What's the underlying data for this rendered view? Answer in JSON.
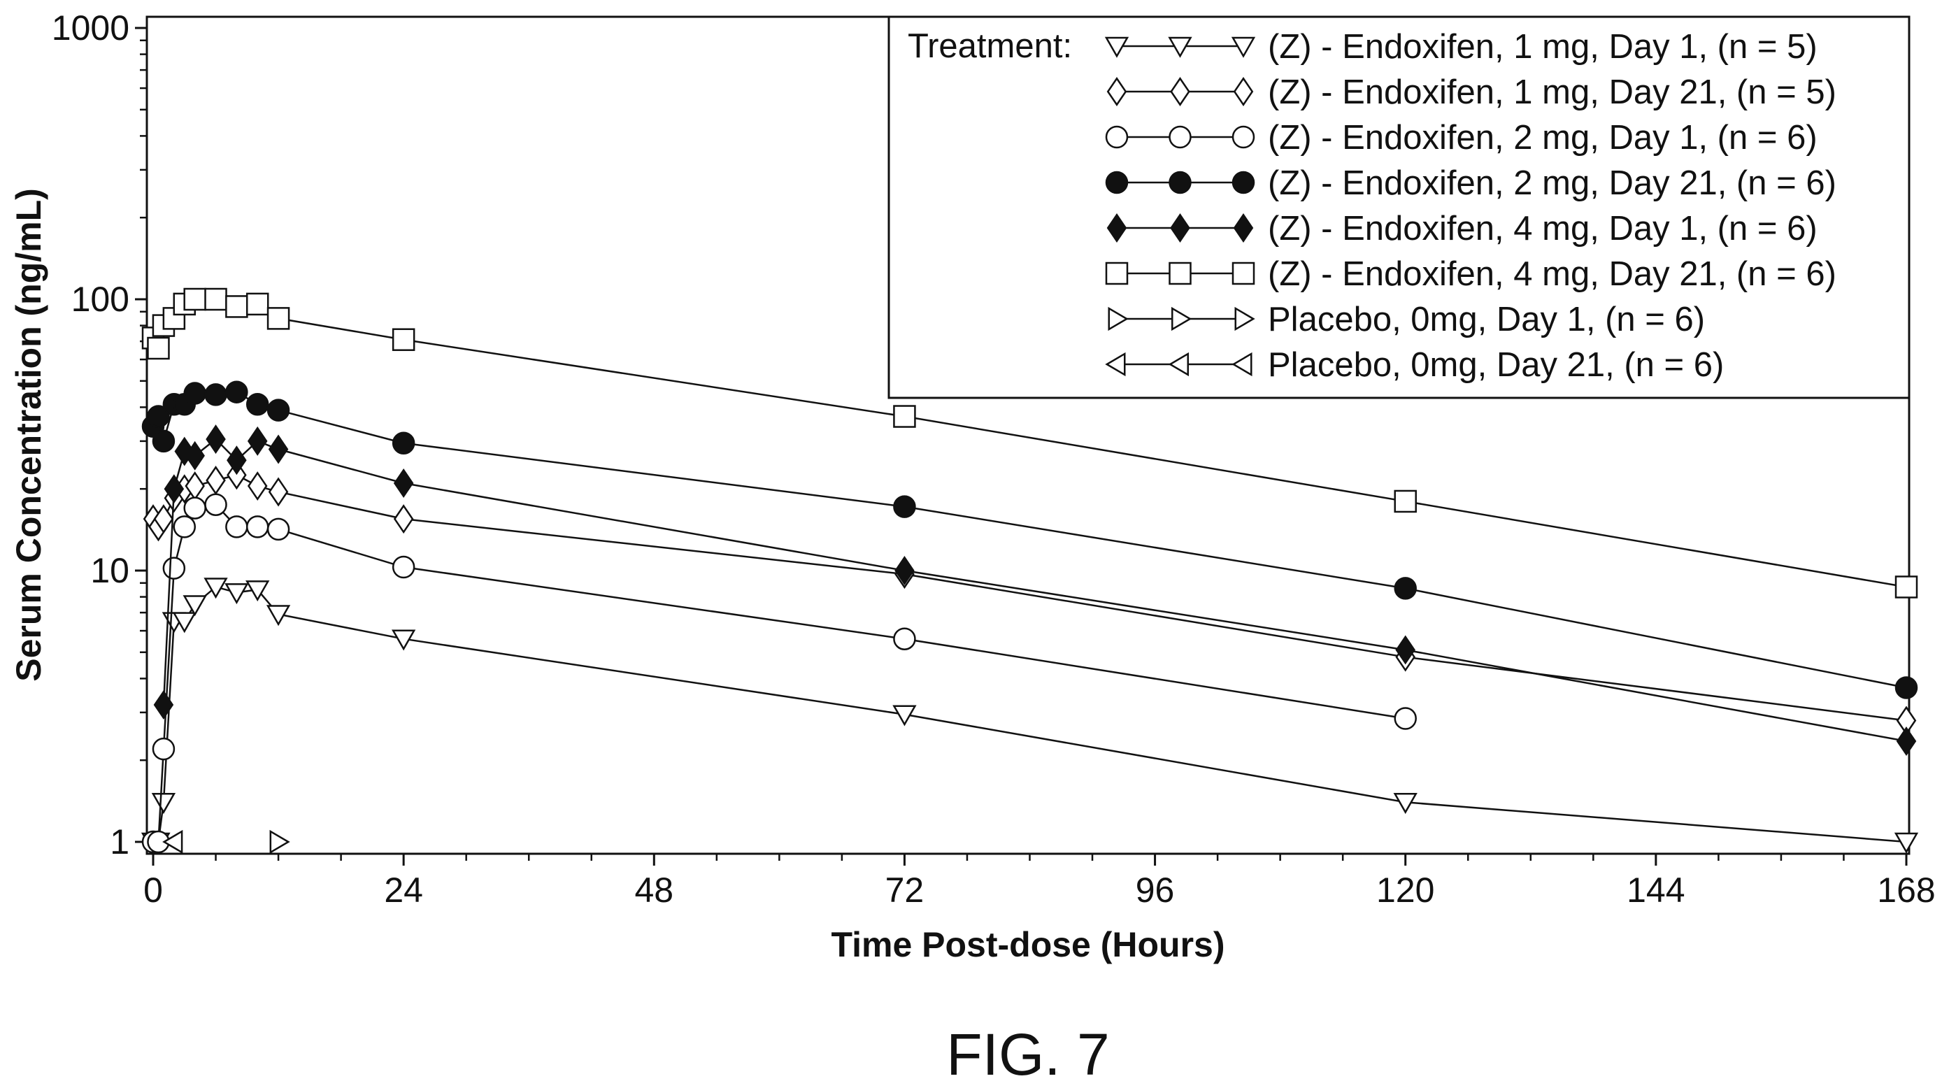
{
  "figure": {
    "caption": "FIG. 7"
  },
  "chart_data": {
    "type": "line",
    "xlabel": "Time Post-dose (Hours)",
    "ylabel": "Serum Concentration (ng/mL)",
    "xlim": [
      0,
      168
    ],
    "ylim": [
      1,
      1000
    ],
    "y_scale": "log",
    "x_ticks": [
      0,
      24,
      48,
      72,
      96,
      120,
      144,
      168
    ],
    "x_tick_labels": [
      "0",
      "24",
      "48",
      "72",
      "96",
      "120",
      "144",
      "168"
    ],
    "y_ticks": [
      1,
      10,
      100,
      1000
    ],
    "y_tick_labels": [
      "1",
      "10",
      "100",
      "1000"
    ],
    "grid": false,
    "legend": {
      "position": "top-right",
      "title": "Treatment:"
    },
    "series": [
      {
        "name": "(Z) - Endoxifen, 1 mg, Day 1, (n = 5)",
        "marker": "triangle-down",
        "filled": false,
        "x": [
          0,
          0.5,
          1,
          2,
          3,
          4,
          6,
          8,
          10,
          12,
          24,
          72,
          120,
          168
        ],
        "y": [
          1.0,
          1.0,
          1.4,
          6.5,
          6.5,
          7.5,
          8.7,
          8.3,
          8.5,
          6.9,
          5.6,
          2.95,
          1.4,
          1.0
        ]
      },
      {
        "name": "(Z) - Endoxifen, 1 mg, Day 21, (n = 5)",
        "marker": "diamond",
        "filled": false,
        "x": [
          0,
          0.5,
          1,
          2,
          3,
          4,
          6,
          8,
          10,
          12,
          24,
          72,
          120,
          168
        ],
        "y": [
          15.5,
          14.5,
          15.5,
          18.5,
          20,
          20.5,
          21.5,
          22.5,
          20.5,
          19.5,
          15.5,
          9.7,
          4.8,
          2.8
        ]
      },
      {
        "name": "(Z) - Endoxifen, 2 mg, Day 1, (n = 6)",
        "marker": "circle",
        "filled": false,
        "x": [
          0,
          0.5,
          1,
          2,
          3,
          4,
          6,
          8,
          10,
          12,
          24,
          72,
          120
        ],
        "y": [
          1.0,
          1.0,
          2.2,
          10.2,
          14.5,
          17,
          17.5,
          14.5,
          14.5,
          14.2,
          10.3,
          5.6,
          2.85
        ]
      },
      {
        "name": "(Z) - Endoxifen, 2 mg, Day 21, (n = 6)",
        "marker": "circle",
        "filled": true,
        "x": [
          0,
          0.5,
          1,
          2,
          3,
          4,
          6,
          8,
          10,
          12,
          24,
          72,
          120,
          168
        ],
        "y": [
          34,
          37,
          30,
          41,
          41,
          45,
          44.5,
          45.5,
          41,
          39,
          29.5,
          17.2,
          8.6,
          3.7
        ]
      },
      {
        "name": "(Z) - Endoxifen, 4 mg, Day 1, (n = 6)",
        "marker": "diamond",
        "filled": true,
        "x": [
          1,
          2,
          3,
          4,
          6,
          8,
          10,
          12,
          24,
          72,
          120,
          168
        ],
        "y": [
          3.2,
          20,
          27.5,
          26.5,
          30.5,
          25.5,
          30,
          28,
          21,
          10,
          5.1,
          2.35
        ]
      },
      {
        "name": "(Z) - Endoxifen, 4 mg, Day 21, (n = 6)",
        "marker": "square",
        "filled": false,
        "x": [
          0,
          0.5,
          1,
          2,
          3,
          4,
          6,
          8,
          10,
          12,
          24,
          72,
          120,
          168
        ],
        "y": [
          72,
          66,
          80,
          85,
          96,
          100,
          100,
          94,
          96,
          85,
          71,
          37,
          18,
          8.7
        ]
      },
      {
        "name": "Placebo, 0mg, Day 1, (n = 6)",
        "marker": "triangle-right",
        "filled": false,
        "x": [
          12
        ],
        "y": [
          1.0
        ]
      },
      {
        "name": "Placebo, 0mg, Day 21, (n = 6)",
        "marker": "triangle-left",
        "filled": false,
        "x": [
          2
        ],
        "y": [
          1.0
        ]
      }
    ]
  }
}
